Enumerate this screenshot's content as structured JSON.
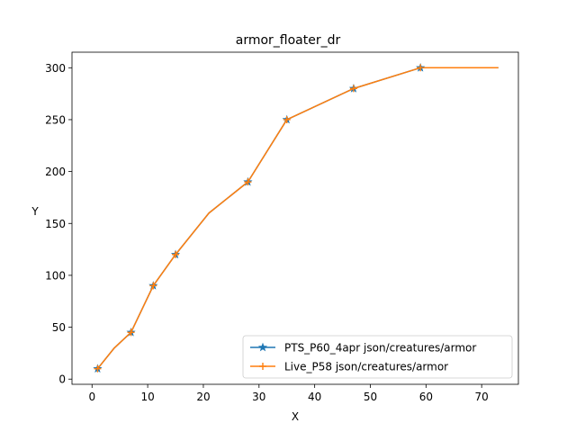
{
  "chart_data": {
    "type": "line",
    "title": "armor_floater_dr",
    "xlabel": "X",
    "ylabel": "Y",
    "xlim": [
      -3.6,
      76.6
    ],
    "ylim": [
      -5,
      315
    ],
    "xticks": [
      0,
      10,
      20,
      30,
      40,
      50,
      60,
      70
    ],
    "yticks": [
      0,
      50,
      100,
      150,
      200,
      250,
      300
    ],
    "grid": false,
    "legend_position": "lower-right",
    "series": [
      {
        "name": "PTS_P60_4apr json/creatures/armor",
        "color": "#1f77b4",
        "marker": "star",
        "x": [
          1,
          4,
          7,
          11,
          15,
          21,
          28,
          35,
          47,
          59,
          73
        ],
        "y": [
          10,
          30,
          45,
          90,
          120,
          160,
          190,
          250,
          280,
          300,
          300
        ],
        "marker_x": [
          1,
          7,
          11,
          15,
          28,
          35,
          47,
          59
        ],
        "marker_y": [
          10,
          45,
          90,
          120,
          190,
          250,
          280,
          300
        ]
      },
      {
        "name": "Live_P58 json/creatures/armor",
        "color": "#ff7f0e",
        "marker": "plus",
        "x": [
          1,
          4,
          7,
          11,
          15,
          21,
          28,
          35,
          47,
          59,
          73
        ],
        "y": [
          10,
          30,
          45,
          90,
          120,
          160,
          190,
          250,
          280,
          300,
          300
        ],
        "marker_x": [
          1,
          7,
          11,
          15,
          28,
          35,
          47,
          59
        ],
        "marker_y": [
          10,
          45,
          90,
          120,
          190,
          250,
          280,
          300
        ]
      }
    ]
  }
}
